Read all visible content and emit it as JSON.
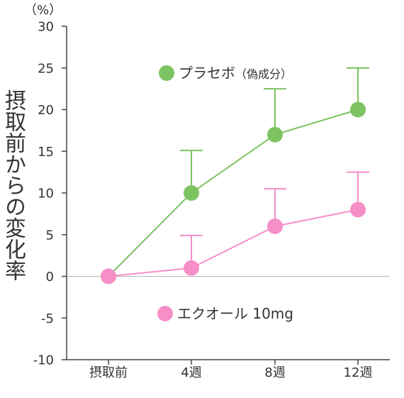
{
  "chart_data": {
    "type": "line",
    "title": "",
    "xlabel": "",
    "ylabel": "摂取前からの変化率",
    "y_unit": "（%）",
    "categories": [
      "摂取前",
      "4週",
      "8週",
      "12週"
    ],
    "ylim": [
      -10,
      30
    ],
    "yticks": [
      30,
      25,
      20,
      15,
      10,
      5,
      0,
      -5,
      -10
    ],
    "grid": false,
    "zero_line": true,
    "error_bars": "upper",
    "series": [
      {
        "name": "プラセボ（偽成分）",
        "name_main": "プラセボ",
        "name_note": "（偽成分）",
        "color": "#7dc362",
        "values": [
          0,
          10,
          17,
          20
        ],
        "upper_error": [
          0,
          5.1,
          5.5,
          5.0
        ]
      },
      {
        "name": "エクオール 10mg",
        "color": "#f68fc8",
        "values": [
          0,
          1,
          6,
          8
        ],
        "upper_error": [
          0,
          3.9,
          4.5,
          4.5
        ]
      }
    ]
  }
}
